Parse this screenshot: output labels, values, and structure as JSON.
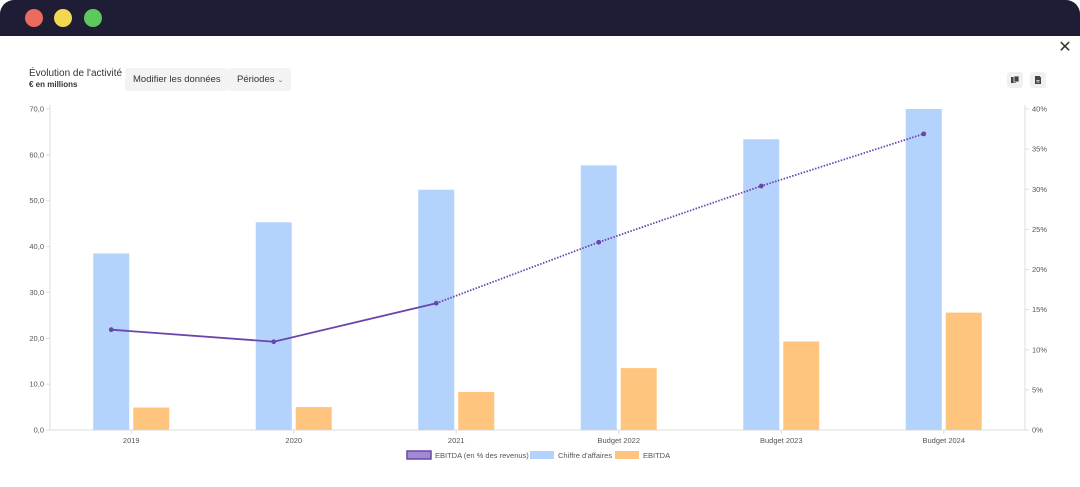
{
  "window": {
    "controls": [
      "close-dot",
      "minimize-dot",
      "maximize-dot"
    ],
    "close_glyph": "✕"
  },
  "header": {
    "title": "Évolution de l'activité",
    "subtitle": "€ en millions",
    "modify_label": "Modifier les données",
    "periods_label": "Périodes",
    "periods_chevron": "⌄",
    "tools": [
      "copy-icon",
      "export-icon"
    ]
  },
  "colors": {
    "revenue": "#b3d3fd",
    "ebitda": "#ffc57e",
    "margin": "#6b46a8",
    "titlebar": "#1f1d36"
  },
  "chart_data": {
    "type": "bar",
    "categories": [
      "2019",
      "2020",
      "2021",
      "Budget 2022",
      "Budget 2023",
      "Budget 2024"
    ],
    "series": [
      {
        "name": "Chiffre d'affaires",
        "type": "bar",
        "axis": "left",
        "values": [
          38.5,
          45.3,
          52.4,
          57.7,
          63.4,
          70.0
        ]
      },
      {
        "name": "EBITDA",
        "type": "bar",
        "axis": "left",
        "values": [
          4.9,
          5.0,
          8.3,
          13.5,
          19.3,
          25.6
        ]
      },
      {
        "name": "EBITDA (en % des revenus)",
        "type": "line",
        "axis": "right",
        "values": [
          12.5,
          11.0,
          15.8,
          23.4,
          30.4,
          36.9
        ],
        "dotted_from_index": 2
      }
    ],
    "ylim_left": [
      0,
      70
    ],
    "ylim_right": [
      0,
      40
    ],
    "yticks_left": [
      "0,0",
      "10,0",
      "20,0",
      "30,0",
      "40,0",
      "50,0",
      "60,0",
      "70,0"
    ],
    "yticks_right": [
      "0%",
      "5%",
      "10%",
      "15%",
      "20%",
      "25%",
      "30%",
      "35%",
      "40%"
    ],
    "legend": [
      "EBITDA (en % des revenus)",
      "Chiffre d'affaires",
      "EBITDA"
    ],
    "legend_position": "bottom",
    "grid": false
  }
}
